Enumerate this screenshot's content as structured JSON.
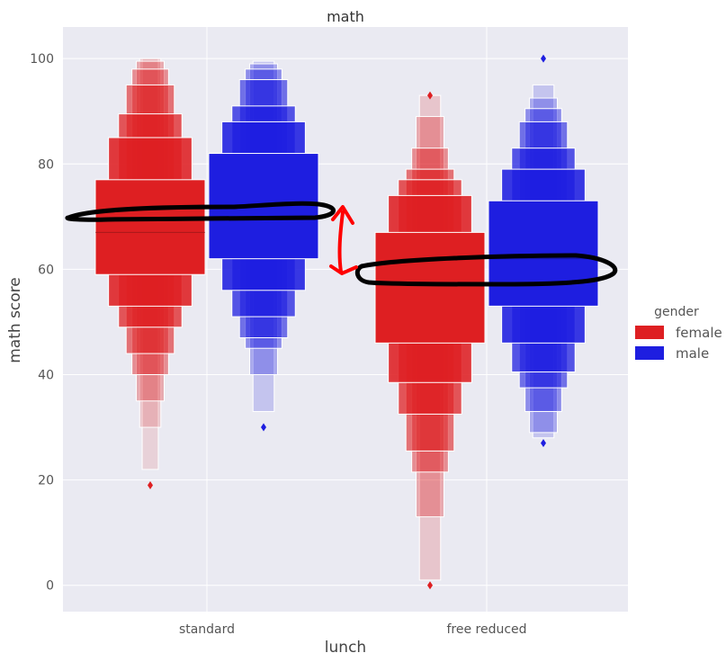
{
  "chart_data": {
    "type": "boxen",
    "title": "math",
    "xlabel": "lunch",
    "ylabel": "math score",
    "categories": [
      "standard",
      "free reduced"
    ],
    "ylim": [
      -5,
      106
    ],
    "yticks": [
      0,
      20,
      40,
      60,
      80,
      100
    ],
    "grid": true,
    "legend": {
      "title": "gender",
      "position": "right",
      "entries": [
        {
          "label": "female",
          "color": "#de1f22"
        },
        {
          "label": "male",
          "color": "#1e1ee0"
        }
      ]
    },
    "series": [
      {
        "name": "female",
        "color": "#de1f22",
        "groups": [
          {
            "category": "standard",
            "median": 67,
            "boxes": [
              [
                59,
                77
              ],
              [
                53,
                85
              ],
              [
                49,
                89.5
              ],
              [
                44,
                95
              ],
              [
                40,
                98
              ],
              [
                35,
                99.5
              ],
              [
                30,
                100
              ],
              [
                22,
                100
              ]
            ],
            "outliers": [
              19
            ]
          },
          {
            "category": "free reduced",
            "median": 57,
            "boxes": [
              [
                46,
                67
              ],
              [
                38.5,
                74
              ],
              [
                32.5,
                77
              ],
              [
                25.5,
                79
              ],
              [
                21.5,
                83
              ],
              [
                13,
                89
              ],
              [
                1,
                93
              ]
            ],
            "outliers": [
              0,
              93
            ]
          }
        ]
      },
      {
        "name": "male",
        "color": "#1e1ee0",
        "groups": [
          {
            "category": "standard",
            "median": 70,
            "boxes": [
              [
                62,
                82
              ],
              [
                56,
                88
              ],
              [
                51,
                91
              ],
              [
                47,
                96
              ],
              [
                45,
                98
              ],
              [
                40,
                99
              ],
              [
                33,
                99.5
              ]
            ],
            "outliers": [
              30
            ]
          },
          {
            "category": "free reduced",
            "median": 62,
            "boxes": [
              [
                53,
                73
              ],
              [
                46,
                79
              ],
              [
                40.5,
                83
              ],
              [
                37.5,
                88
              ],
              [
                33,
                90.5
              ],
              [
                29,
                92.5
              ],
              [
                28,
                95
              ]
            ],
            "outliers": [
              27,
              100
            ]
          }
        ]
      }
    ],
    "annotations": [
      {
        "type": "hand-drawn-ellipse",
        "color": "#000000",
        "around": "standard medians (~70)"
      },
      {
        "type": "hand-drawn-ellipse",
        "color": "#000000",
        "around": "free reduced medians (~61)"
      },
      {
        "type": "hand-drawn-double-arrow",
        "color": "#ff0000",
        "between": "two median groups"
      }
    ]
  }
}
